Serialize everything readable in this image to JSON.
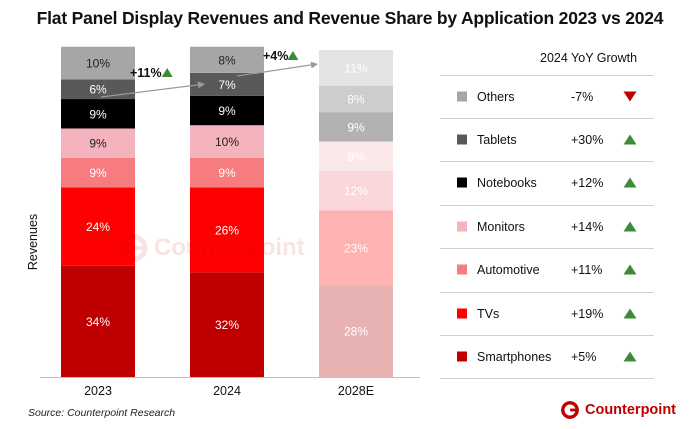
{
  "title": "Flat Panel Display Revenues and Revenue Share by Application 2023 vs 2024",
  "source": "Source: Counterpoint Research",
  "brand": "Counterpoint",
  "watermark": "Counterpoint",
  "colors": {
    "Smartphones": "#c00000",
    "TVs": "#ff0000",
    "Automotive": "#f77c80",
    "Monitors": "#f4b3bd",
    "Notebooks": "#000000",
    "Tablets": "#595959",
    "Others": "#a6a6a6",
    "Smartphones_faded": "#e6b2b2",
    "TVs_faded": "#ffb2b2",
    "Automotive_faded": "#fcd7d9",
    "Monitors_faded": "#fbe8eb",
    "Notebooks_faded": "#b2b2b2",
    "Tablets_faded": "#cdcdcd",
    "Others_faded": "#e4e4e4",
    "arrow": "#9a9a9a",
    "up": "#3d8b37",
    "down": "#c00000",
    "brand": "#c00000"
  },
  "chart_data": {
    "type": "bar",
    "stacked": true,
    "normalized": true,
    "ylabel": "Revenues",
    "categories": [
      "2023",
      "2024",
      "2028E"
    ],
    "projected_category": "2028E",
    "growth_annotations": [
      {
        "between": [
          "2023",
          "2024"
        ],
        "label": "+11%",
        "direction": "up"
      },
      {
        "between": [
          "2024",
          "2028E"
        ],
        "label": "+4%",
        "direction": "up"
      }
    ],
    "series": [
      {
        "name": "Smartphones",
        "values": [
          34,
          32,
          28
        ],
        "labels": [
          "34%",
          "32%",
          "28%"
        ]
      },
      {
        "name": "TVs",
        "values": [
          24,
          26,
          23
        ],
        "labels": [
          "24%",
          "26%",
          "23%"
        ]
      },
      {
        "name": "Automotive",
        "values": [
          9,
          9,
          12
        ],
        "labels": [
          "9%",
          "9%",
          "12%"
        ]
      },
      {
        "name": "Monitors",
        "values": [
          9,
          10,
          9
        ],
        "labels": [
          "9%",
          "10%",
          "9%"
        ]
      },
      {
        "name": "Notebooks",
        "values": [
          9,
          9,
          9
        ],
        "labels": [
          "9%",
          "9%",
          "9%"
        ]
      },
      {
        "name": "Tablets",
        "values": [
          6,
          7,
          8
        ],
        "labels": [
          "6%",
          "7%",
          "8%"
        ]
      },
      {
        "name": "Others",
        "values": [
          10,
          8,
          11
        ],
        "labels": [
          "10%",
          "8%",
          "11%"
        ]
      }
    ],
    "legend": {
      "header": "2024 YoY Growth",
      "items": [
        {
          "name": "Others",
          "growth": "-7%",
          "direction": "down"
        },
        {
          "name": "Tablets",
          "growth": "+30%",
          "direction": "up"
        },
        {
          "name": "Notebooks",
          "growth": "+12%",
          "direction": "up"
        },
        {
          "name": "Monitors",
          "growth": "+14%",
          "direction": "up"
        },
        {
          "name": "Automotive",
          "growth": "+11%",
          "direction": "up"
        },
        {
          "name": "TVs",
          "growth": "+19%",
          "direction": "up"
        },
        {
          "name": "Smartphones",
          "growth": "+5%",
          "direction": "up"
        }
      ]
    }
  }
}
